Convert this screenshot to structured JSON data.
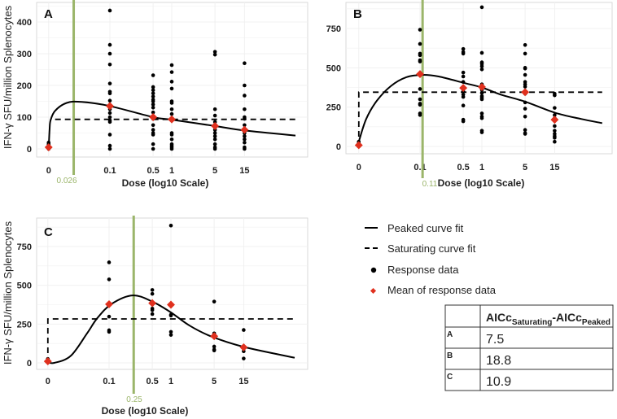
{
  "chart_data": [
    {
      "type": "scatter",
      "panel_label": "A",
      "xlabel": "Dose (log10 Scale)",
      "ylabel": "IFN-γ SFU/million Splenocytes",
      "x_scale": "log10",
      "x_ticks": [
        "0",
        "0.1",
        "0.5",
        "1",
        "5",
        "15"
      ],
      "y_ticks": [
        0,
        100,
        200,
        300,
        400
      ],
      "ylim": [
        0,
        450
      ],
      "grid": true,
      "vline": {
        "x": 0.026,
        "label": "0.026",
        "color": "#9bb56a"
      },
      "response_data": [
        {
          "dose": 0,
          "values": [
            0,
            5,
            10,
            15,
            20
          ]
        },
        {
          "dose": 0.1,
          "values": [
            436,
            328,
            300,
            266,
            206,
            180,
            175,
            152,
            135,
            125,
            113,
            100,
            90,
            85,
            45,
            10,
            0
          ]
        },
        {
          "dose": 0.5,
          "values": [
            232,
            195,
            185,
            175,
            165,
            155,
            150,
            140,
            130,
            115,
            100,
            95,
            75,
            60,
            50,
            45,
            15,
            0
          ]
        },
        {
          "dose": 1,
          "values": [
            264,
            242,
            212,
            190,
            150,
            145,
            125,
            110,
            95,
            50,
            45,
            30,
            15,
            10,
            5,
            0
          ]
        },
        {
          "dose": 5,
          "values": [
            306,
            297,
            125,
            105,
            85,
            75,
            60,
            50,
            40,
            30,
            15,
            5,
            0
          ]
        },
        {
          "dose": 15,
          "values": [
            270,
            200,
            168,
            125,
            100,
            95,
            75,
            50,
            40,
            30,
            20,
            5,
            0
          ]
        }
      ],
      "means": [
        {
          "dose": 0,
          "value": 5
        },
        {
          "dose": 0.1,
          "value": 135
        },
        {
          "dose": 0.5,
          "value": 100
        },
        {
          "dose": 1,
          "value": 93
        },
        {
          "dose": 5,
          "value": 72
        },
        {
          "dose": 15,
          "value": 60
        }
      ],
      "peaked_fit": [
        [
          0,
          0
        ],
        [
          0.0106,
          60
        ],
        [
          0.011,
          90
        ],
        [
          0.013,
          120
        ],
        [
          0.02,
          145
        ],
        [
          0.035,
          148
        ],
        [
          0.1,
          135
        ],
        [
          0.5,
          100
        ],
        [
          1,
          92
        ],
        [
          5,
          72
        ],
        [
          15,
          58
        ],
        [
          100,
          42
        ]
      ],
      "saturating_fit": [
        [
          0.013,
          93
        ],
        [
          100,
          93
        ]
      ]
    },
    {
      "type": "scatter",
      "panel_label": "B",
      "xlabel": "Dose (log10 Scale)",
      "ylabel": "",
      "x_scale": "log10",
      "x_ticks": [
        "0",
        "0.1",
        "0.5",
        "1",
        "5",
        "15"
      ],
      "y_ticks": [
        0,
        250,
        500,
        750
      ],
      "ylim": [
        0,
        900
      ],
      "grid": true,
      "vline": {
        "x": 0.11,
        "label": "0.11",
        "color": "#9bb56a"
      },
      "response_data": [
        {
          "dose": 0,
          "values": [
            0,
            10,
            20,
            30
          ]
        },
        {
          "dose": 0.1,
          "values": [
            742,
            652,
            590,
            580,
            548,
            540,
            365,
            300,
            272,
            265,
            210,
            200
          ]
        },
        {
          "dose": 0.5,
          "values": [
            620,
            600,
            590,
            470,
            445,
            410,
            380,
            350,
            330,
            315,
            260,
            170,
            160
          ]
        },
        {
          "dose": 1,
          "values": [
            885,
            595,
            535,
            525,
            510,
            490,
            395,
            360,
            340,
            320,
            310,
            300,
            210,
            190,
            180,
            100,
            90
          ]
        },
        {
          "dose": 5,
          "values": [
            645,
            590,
            500,
            495,
            455,
            410,
            395,
            380,
            345,
            335,
            280,
            240,
            190,
            105,
            85,
            80
          ]
        },
        {
          "dose": 15,
          "values": [
            335,
            325,
            245,
            200,
            180,
            130,
            100,
            80,
            65,
            55,
            30
          ]
        }
      ],
      "means": [
        {
          "dose": 0,
          "value": 8
        },
        {
          "dose": 0.1,
          "value": 460
        },
        {
          "dose": 0.5,
          "value": 372
        },
        {
          "dose": 1,
          "value": 378
        },
        {
          "dose": 5,
          "value": 345
        },
        {
          "dose": 15,
          "value": 170
        }
      ],
      "peaked_fit": [
        [
          0,
          30
        ],
        [
          0.0135,
          175
        ],
        [
          0.02,
          290
        ],
        [
          0.034,
          385
        ],
        [
          0.06,
          440
        ],
        [
          0.11,
          455
        ],
        [
          0.2,
          445
        ],
        [
          0.5,
          405
        ],
        [
          1,
          375
        ],
        [
          2,
          330
        ],
        [
          5,
          285
        ],
        [
          15,
          215
        ],
        [
          40,
          175
        ],
        [
          88,
          148
        ]
      ],
      "saturating_fit": [
        [
          0,
          0
        ],
        [
          0,
          345
        ],
        [
          88,
          345
        ]
      ]
    },
    {
      "type": "scatter",
      "panel_label": "C",
      "xlabel": "Dose (log10 Scale)",
      "ylabel": "IFN-γ SFU/million Splenocytes",
      "x_scale": "log10",
      "x_ticks": [
        "0",
        "0.1",
        "0.5",
        "1",
        "5",
        "15"
      ],
      "y_ticks": [
        0,
        250,
        500,
        750
      ],
      "ylim": [
        0,
        900
      ],
      "grid": true,
      "vline": {
        "x": 0.25,
        "label": "0.25",
        "color": "#9bb56a"
      },
      "response_data": [
        {
          "dose": 0,
          "values": [
            25,
            10,
            5
          ]
        },
        {
          "dose": 0.1,
          "values": [
            648,
            538,
            380,
            298,
            210,
            200
          ]
        },
        {
          "dose": 0.5,
          "values": [
            470,
            445,
            385,
            350,
            340,
            315
          ]
        },
        {
          "dose": 1,
          "values": [
            885,
            310,
            305,
            200,
            180
          ]
        },
        {
          "dose": 5,
          "values": [
            395,
            190,
            170,
            105,
            85,
            80
          ]
        },
        {
          "dose": 15,
          "values": [
            212,
            100,
            75,
            28
          ]
        }
      ],
      "means": [
        {
          "dose": 0,
          "value": 10
        },
        {
          "dose": 0.1,
          "value": 378
        },
        {
          "dose": 0.5,
          "value": 385
        },
        {
          "dose": 1,
          "value": 375
        },
        {
          "dose": 5,
          "value": 172
        },
        {
          "dose": 15,
          "value": 100
        }
      ],
      "peaked_fit": [
        [
          0,
          5
        ],
        [
          0.013,
          0
        ],
        [
          0.024,
          45
        ],
        [
          0.044,
          190
        ],
        [
          0.065,
          290
        ],
        [
          0.11,
          380
        ],
        [
          0.24,
          435
        ],
        [
          0.5,
          395
        ],
        [
          1,
          325
        ],
        [
          2,
          240
        ],
        [
          4.5,
          170
        ],
        [
          15,
          103
        ],
        [
          100,
          33
        ]
      ],
      "saturating_fit": [
        [
          0,
          0
        ],
        [
          0,
          283
        ],
        [
          100,
          283
        ]
      ]
    }
  ],
  "colors": {
    "response": "#000000",
    "mean": "#e0301e",
    "threshold": "#9bb56a",
    "panel_border": "#d9d9d9",
    "grid": "#f0f0f0"
  },
  "legend": {
    "items": [
      {
        "label": "Peaked curve fit",
        "symbol": "solid-line"
      },
      {
        "label": "Saturating curve fit",
        "symbol": "dashed-line"
      },
      {
        "label": "Response data",
        "symbol": "black-dot"
      },
      {
        "label": "Mean of response data",
        "symbol": "red-diamond"
      }
    ]
  },
  "table": {
    "header": {
      "main": "AICc",
      "sub1": "Saturating",
      "mid": "-AICc",
      "sub2": "Peaked"
    },
    "rows": [
      {
        "label": "A",
        "value": "7.5"
      },
      {
        "label": "B",
        "value": "18.8"
      },
      {
        "label": "C",
        "value": "10.9"
      }
    ]
  }
}
